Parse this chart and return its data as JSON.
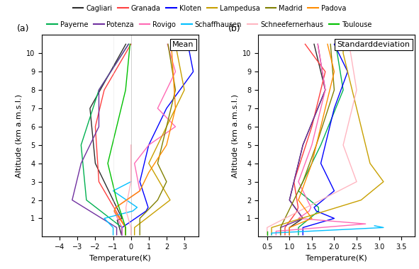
{
  "stations": [
    "Cagliari",
    "Payerne",
    "Granada",
    "Potenza",
    "Kloten",
    "Rovigo",
    "Lampedusa",
    "Schaffhausen",
    "Madrid",
    "Schneefernerhaus",
    "Padova",
    "Toulouse"
  ],
  "colors": {
    "Cagliari": "#2d2d2d",
    "Payerne": "#00b050",
    "Granada": "#ff4040",
    "Potenza": "#7030a0",
    "Kloten": "#0000ff",
    "Rovigo": "#ff69b4",
    "Lampedusa": "#c8a000",
    "Schaffhausen": "#00bfff",
    "Madrid": "#808000",
    "Schneefernerhaus": "#ffb6c1",
    "Padova": "#ff8c00",
    "Toulouse": "#00c000"
  },
  "altitude": [
    0.1,
    0.2,
    0.3,
    0.4,
    0.5,
    0.6,
    0.7,
    0.8,
    0.9,
    1.0,
    1.1,
    1.2,
    1.4,
    1.6,
    1.8,
    2.0,
    2.2,
    2.5,
    2.8,
    3.0,
    3.5,
    4.0,
    4.5,
    5.0,
    5.5,
    6.0,
    6.5,
    7.0,
    7.5,
    8.0,
    8.5,
    9.0,
    9.5,
    10.0,
    10.5
  ],
  "mean_title": "Mean",
  "std_title": "Standarddeviation",
  "xlabel": "Temperature(K)",
  "ylabel": "Altitude (km a.m.s.l.)",
  "mean_xlim": [
    -5.0,
    3.8
  ],
  "std_xlim": [
    0.3,
    3.8
  ],
  "ylim": [
    0.0,
    11.0
  ],
  "mean_xticks": [
    -4,
    -3,
    -2,
    -1,
    0,
    1,
    2,
    3
  ],
  "std_xticks": [
    0.5,
    1.0,
    1.5,
    2.0,
    2.5,
    3.0,
    3.5
  ],
  "yticks": [
    1,
    2,
    3,
    4,
    5,
    6,
    7,
    8,
    9,
    10
  ],
  "max_alt_mean": {
    "Cagliari": 10.5,
    "Payerne": 10.5,
    "Granada": 10.5,
    "Potenza": 10.5,
    "Kloten": 10.5,
    "Rovigo": 10.5,
    "Lampedusa": 10.5,
    "Schaffhausen": 3.0,
    "Madrid": 10.5,
    "Schneefernerhaus": 5.0,
    "Padova": 10.5,
    "Toulouse": 10.5
  },
  "max_alt_std": {
    "Cagliari": 10.5,
    "Payerne": 10.5,
    "Granada": 10.5,
    "Potenza": 10.5,
    "Kloten": 10.5,
    "Rovigo": 10.5,
    "Lampedusa": 10.5,
    "Schaffhausen": 0.6,
    "Madrid": 10.5,
    "Schneefernerhaus": 10.5,
    "Padova": 10.5,
    "Toulouse": 0.3
  },
  "legend_row1": [
    "Cagliari",
    "Granada",
    "Kloten",
    "Lampedusa",
    "Madrid",
    "Padova"
  ],
  "legend_row2": [
    "Payerne",
    "Potenza",
    "Rovigo",
    "Schaffhausen",
    "Schneefernerhaus",
    "Toulouse"
  ]
}
